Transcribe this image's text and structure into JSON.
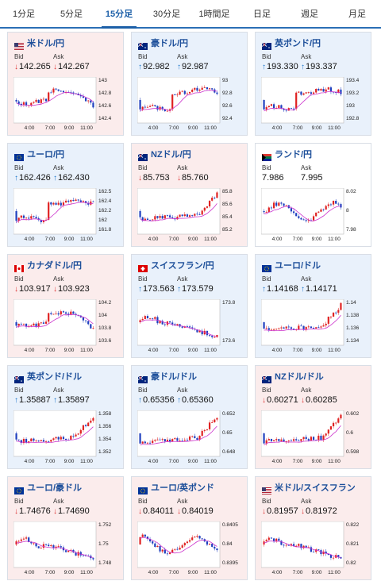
{
  "tabs": [
    "1分足",
    "5分足",
    "15分足",
    "30分足",
    "1時間足",
    "日足",
    "週足",
    "月足"
  ],
  "active_tab": "15分足",
  "bid_label": "Bid",
  "ask_label": "Ask",
  "x_ticks": [
    "4:00",
    "7:00",
    "9:00",
    "11:00"
  ],
  "cards": [
    {
      "pair": "米ドル/円",
      "flag": "us-jp-flag",
      "bg": "pink",
      "dir": "down",
      "bid": "142.265",
      "ask": "142.267",
      "y_ticks": [
        "143",
        "142.8",
        "142.6",
        "142.4"
      ],
      "trend": "hump-down"
    },
    {
      "pair": "豪ドル/円",
      "flag": "au-jp-flag",
      "bg": "blue",
      "dir": "up",
      "bid": "92.982",
      "ask": "92.987",
      "y_ticks": [
        "93",
        "92.8",
        "92.6",
        "92.4"
      ],
      "trend": "jump-up"
    },
    {
      "pair": "英ポンド/円",
      "flag": "gb-jp-flag",
      "bg": "blue",
      "dir": "up",
      "bid": "193.330",
      "ask": "193.337",
      "y_ticks": [
        "193.4",
        "193.2",
        "193",
        "192.8"
      ],
      "trend": "jump-up"
    },
    {
      "pair": "ユーロ/円",
      "flag": "eu-jp-flag",
      "bg": "blue",
      "dir": "up",
      "bid": "162.426",
      "ask": "162.430",
      "y_ticks": [
        "162.5",
        "162.4",
        "162.2",
        "162",
        "161.8"
      ],
      "trend": "jump-up"
    },
    {
      "pair": "NZドル/円",
      "flag": "nz-jp-flag",
      "bg": "pink",
      "dir": "down",
      "bid": "85.753",
      "ask": "85.760",
      "y_ticks": [
        "85.8",
        "85.6",
        "85.4",
        "85.2"
      ],
      "trend": "rise"
    },
    {
      "pair": "ランド/円",
      "flag": "za-jp-flag",
      "bg": "white",
      "dir": "none",
      "bid": "7.986",
      "ask": "7.995",
      "y_ticks": [
        "8.02",
        "8",
        "7.98"
      ],
      "trend": "wave"
    },
    {
      "pair": "カナダドル/円",
      "flag": "ca-jp-flag",
      "bg": "pink",
      "dir": "down",
      "bid": "103.917",
      "ask": "103.923",
      "y_ticks": [
        "104.2",
        "104",
        "103.8",
        "103.6"
      ],
      "trend": "hump-down"
    },
    {
      "pair": "スイスフラン/円",
      "flag": "ch-jp-flag",
      "bg": "blue",
      "dir": "up",
      "bid": "173.563",
      "ask": "173.579",
      "y_ticks": [
        "173.8",
        "173.6"
      ],
      "trend": "fall"
    },
    {
      "pair": "ユーロ/ドル",
      "flag": "eu-us-flag",
      "bg": "blue",
      "dir": "up",
      "bid": "1.14168",
      "ask": "1.14171",
      "y_ticks": [
        "1.14",
        "1.138",
        "1.136",
        "1.134"
      ],
      "trend": "rise"
    },
    {
      "pair": "英ポンド/ドル",
      "flag": "gb-us-flag",
      "bg": "blue",
      "dir": "up",
      "bid": "1.35887",
      "ask": "1.35897",
      "y_ticks": [
        "1.358",
        "1.356",
        "1.354",
        "1.352"
      ],
      "trend": "rise"
    },
    {
      "pair": "豪ドル/ドル",
      "flag": "au-us-flag",
      "bg": "blue",
      "dir": "up",
      "bid": "0.65356",
      "ask": "0.65360",
      "y_ticks": [
        "0.652",
        "0.65",
        "0.648"
      ],
      "trend": "rise"
    },
    {
      "pair": "NZドル/ドル",
      "flag": "nz-us-flag",
      "bg": "pink",
      "dir": "down",
      "bid": "0.60271",
      "ask": "0.60285",
      "y_ticks": [
        "0.602",
        "0.6",
        "0.598"
      ],
      "trend": "rise"
    },
    {
      "pair": "ユーロ/豪ドル",
      "flag": "eu-au-flag",
      "bg": "pink",
      "dir": "down",
      "bid": "1.74676",
      "ask": "1.74690",
      "y_ticks": [
        "1.752",
        "1.75",
        "1.748"
      ],
      "trend": "fall"
    },
    {
      "pair": "ユーロ/英ポンド",
      "flag": "eu-gb-flag",
      "bg": "pink",
      "dir": "down",
      "bid": "0.84011",
      "ask": "0.84019",
      "y_ticks": [
        "0.8405",
        "0.84",
        "0.8395"
      ],
      "trend": "wave"
    },
    {
      "pair": "米ドル/スイスフラン",
      "flag": "us-ch-flag",
      "bg": "pink",
      "dir": "down",
      "bid": "0.81957",
      "ask": "0.81972",
      "y_ticks": [
        "0.822",
        "0.821",
        "0.82"
      ],
      "trend": "fall"
    }
  ]
}
